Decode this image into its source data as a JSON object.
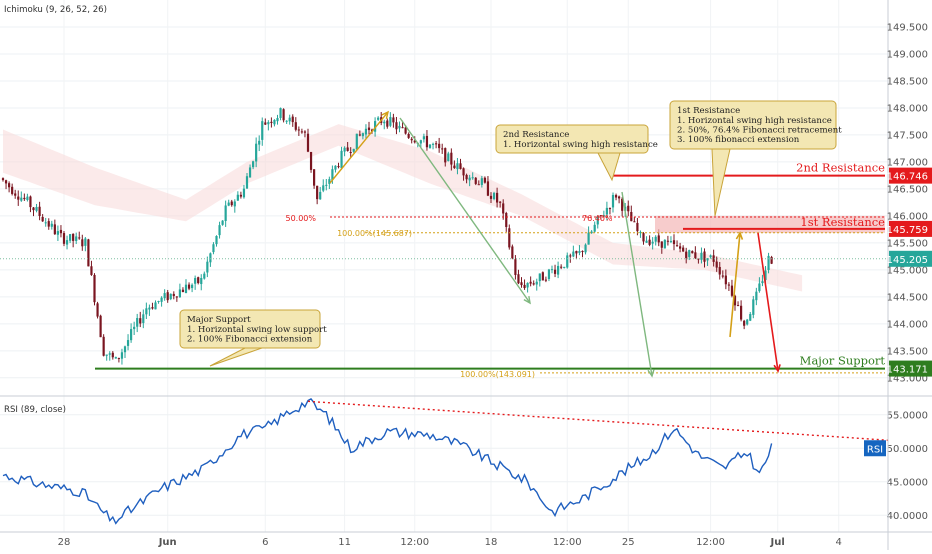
{
  "colors": {
    "bull": "#26a69a",
    "bear": "#7a1520",
    "resistance": "#e41a1c",
    "support": "#2e7d1e",
    "fib": "#d4a017",
    "arrow_green": "#7fb87f",
    "rsi_line": "#1f5fbf",
    "rsi_badge": "#1565c0",
    "callout_bg": "#f3e7b3",
    "callout_border": "#c9a43a"
  },
  "chart_data": [
    {
      "type": "candlestick",
      "title": "Ichimoku (9, 26, 52, 26)",
      "x_ticks": [
        "28",
        "Jun",
        "6",
        "11",
        "12:00",
        "18",
        "12:00",
        "25",
        "12:00",
        "Jul",
        "4"
      ],
      "y_ticks": [
        "149.500",
        "149.000",
        "148.500",
        "148.000",
        "147.500",
        "147.000",
        "146.500",
        "146.000",
        "145.500",
        "145.000",
        "144.500",
        "144.000",
        "143.500",
        "143.000"
      ],
      "ylim": [
        142.7,
        150.0
      ],
      "path": [
        {
          "i": 0,
          "v": 146.7
        },
        {
          "i": 10,
          "v": 146.2
        },
        {
          "i": 20,
          "v": 145.6
        },
        {
          "i": 28,
          "v": 145.5
        },
        {
          "i": 34,
          "v": 143.5
        },
        {
          "i": 38,
          "v": 143.3
        },
        {
          "i": 48,
          "v": 144.3
        },
        {
          "i": 58,
          "v": 144.6
        },
        {
          "i": 66,
          "v": 144.8
        },
        {
          "i": 74,
          "v": 146.1
        },
        {
          "i": 80,
          "v": 146.5
        },
        {
          "i": 86,
          "v": 147.7
        },
        {
          "i": 92,
          "v": 147.9
        },
        {
          "i": 100,
          "v": 147.5
        },
        {
          "i": 104,
          "v": 146.3
        },
        {
          "i": 112,
          "v": 147.1
        },
        {
          "i": 120,
          "v": 147.6
        },
        {
          "i": 126,
          "v": 147.8
        },
        {
          "i": 134,
          "v": 147.5
        },
        {
          "i": 142,
          "v": 147.3
        },
        {
          "i": 150,
          "v": 146.9
        },
        {
          "i": 158,
          "v": 146.6
        },
        {
          "i": 164,
          "v": 146.2
        },
        {
          "i": 170,
          "v": 144.7
        },
        {
          "i": 176,
          "v": 144.8
        },
        {
          "i": 184,
          "v": 145.1
        },
        {
          "i": 190,
          "v": 145.3
        },
        {
          "i": 196,
          "v": 145.9
        },
        {
          "i": 202,
          "v": 146.4
        },
        {
          "i": 206,
          "v": 146.0
        },
        {
          "i": 210,
          "v": 145.6
        },
        {
          "i": 218,
          "v": 145.5
        },
        {
          "i": 226,
          "v": 145.3
        },
        {
          "i": 234,
          "v": 145.2
        },
        {
          "i": 240,
          "v": 144.6
        },
        {
          "i": 244,
          "v": 144.0
        },
        {
          "i": 248,
          "v": 144.5
        },
        {
          "i": 252,
          "v": 145.2
        }
      ],
      "ichimoku_cloud": [
        {
          "i": 0,
          "top": 147.6,
          "bottom": 146.8
        },
        {
          "i": 30,
          "top": 146.9,
          "bottom": 146.2
        },
        {
          "i": 60,
          "top": 146.3,
          "bottom": 145.9
        },
        {
          "i": 80,
          "top": 147.0,
          "bottom": 146.6
        },
        {
          "i": 110,
          "top": 147.7,
          "bottom": 147.3
        },
        {
          "i": 140,
          "top": 147.2,
          "bottom": 146.6
        },
        {
          "i": 170,
          "top": 146.4,
          "bottom": 146.0
        },
        {
          "i": 200,
          "top": 145.5,
          "bottom": 145.1
        },
        {
          "i": 230,
          "top": 145.3,
          "bottom": 145.0
        },
        {
          "i": 262,
          "top": 144.9,
          "bottom": 144.6
        }
      ],
      "levels": [
        {
          "name": "2nd Resistance",
          "value": 146.746,
          "badge": "146.746"
        },
        {
          "name": "1st Resistance",
          "value": 145.759,
          "badge": "145.759"
        },
        {
          "name": "Major Support",
          "value": 143.171,
          "badge": "143.171"
        }
      ],
      "current_price": {
        "value": 145.205,
        "badge": "145.205"
      },
      "fib_lines": [
        {
          "label": "50.00%",
          "value": 145.98
        },
        {
          "label": "76.40%",
          "value": 145.98
        },
        {
          "label": "100.00%(145.687)",
          "value": 145.687
        },
        {
          "label": "100.00%(143.091)",
          "value": 143.091
        }
      ],
      "callouts": {
        "second": {
          "title": "2nd Resistance",
          "lines": [
            "1. Horizontal swing high resistance"
          ]
        },
        "first": {
          "title": "1st Resistance",
          "lines": [
            "1. Horizontal swing high resistance",
            "2. 50%, 76.4% Fibonacci retracement",
            "3. 100% fibonacci extension"
          ]
        },
        "support": {
          "title": "Major Support",
          "lines": [
            "1. Horizontal swing low support",
            "2. 100% Fibonacci extension"
          ]
        }
      }
    },
    {
      "type": "line",
      "title": "RSI (89, close)",
      "badge": "RSI",
      "y_ticks": [
        "55.0000",
        "50.0000",
        "45.0000",
        "40.0000"
      ],
      "ylim": [
        37.5,
        57.5
      ],
      "path": [
        {
          "i": 0,
          "v": 46.0
        },
        {
          "i": 14,
          "v": 44.5
        },
        {
          "i": 26,
          "v": 43.5
        },
        {
          "i": 36,
          "v": 39.0
        },
        {
          "i": 52,
          "v": 44.0
        },
        {
          "i": 66,
          "v": 47.0
        },
        {
          "i": 78,
          "v": 52.0
        },
        {
          "i": 86,
          "v": 53.0
        },
        {
          "i": 94,
          "v": 55.5
        },
        {
          "i": 100,
          "v": 57.0
        },
        {
          "i": 106,
          "v": 55.0
        },
        {
          "i": 114,
          "v": 50.0
        },
        {
          "i": 126,
          "v": 52.5
        },
        {
          "i": 140,
          "v": 52.0
        },
        {
          "i": 150,
          "v": 50.5
        },
        {
          "i": 162,
          "v": 47.5
        },
        {
          "i": 172,
          "v": 45.0
        },
        {
          "i": 180,
          "v": 40.5
        },
        {
          "i": 190,
          "v": 42.5
        },
        {
          "i": 200,
          "v": 45.5
        },
        {
          "i": 212,
          "v": 49.0
        },
        {
          "i": 220,
          "v": 53.0
        },
        {
          "i": 228,
          "v": 49.0
        },
        {
          "i": 236,
          "v": 47.0
        },
        {
          "i": 244,
          "v": 49.5
        },
        {
          "i": 248,
          "v": 46.0
        },
        {
          "i": 252,
          "v": 50.0
        }
      ],
      "trendline": {
        "from": {
          "i": 100,
          "v": 57.0
        },
        "to": {
          "i": 290,
          "v": 51.2
        }
      }
    }
  ]
}
